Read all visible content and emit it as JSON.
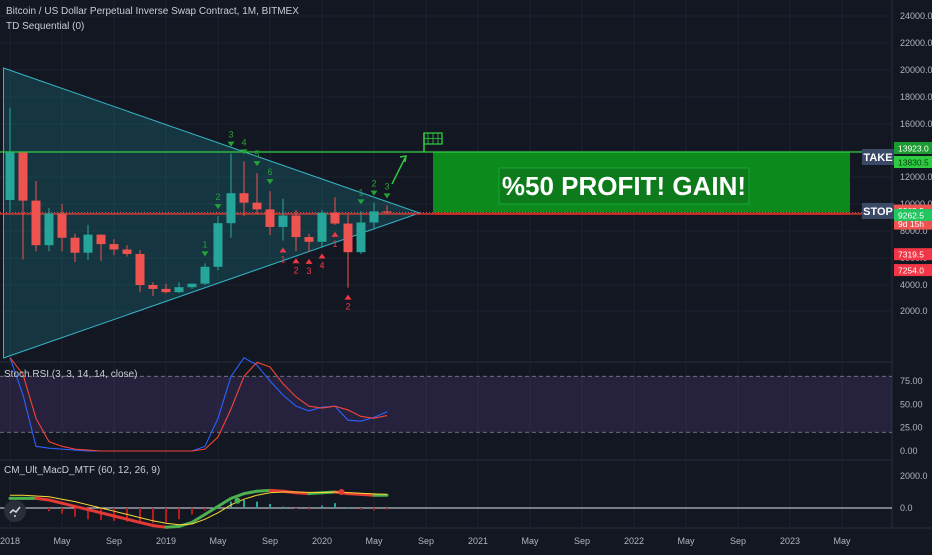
{
  "header": {
    "title": "Bitcoin / US Dollar Perpetual Inverse Swap Contract, 1M, BITMEX",
    "indicator": "TD Sequential (0)"
  },
  "panes": {
    "stoch_label": "Stoch RSI (3, 3, 14, 14, close)",
    "macd_label": "CM_Ult_MacD_MTF (60, 12, 26, 9)"
  },
  "annotations": {
    "banner": "%50 PROFIT! GAIN!",
    "take_label": "TAKE",
    "stop_label": "STOP"
  },
  "colors": {
    "background": "#131722",
    "up": "#26a69a",
    "down": "#ef5350",
    "profit": "#0c8a1b",
    "stop": "#8b0a0a",
    "take_line": "#2ecc40",
    "stop_line": "#e53935"
  },
  "chart_data": [
    {
      "type": "candlestick",
      "scale": "log",
      "y_ticks": [
        2000,
        4000,
        6000,
        8000,
        10000,
        12000,
        14000,
        16000,
        18000,
        20000,
        22000,
        24000
      ],
      "y_tick_labels": [
        "2000.0",
        "4000.0",
        "6000.0",
        "8000.0",
        "10000.0",
        "12000.0",
        "14000.0",
        "16000.0",
        "18000.0",
        "20000.0",
        "22000.0",
        "24000.0"
      ],
      "x_labels": [
        "2018",
        "May",
        "Sep",
        "2019",
        "May",
        "Sep",
        "2020",
        "May",
        "Sep",
        "2021",
        "May",
        "Sep",
        "2022",
        "May",
        "Sep",
        "2023",
        "May"
      ],
      "x_label_months": [
        0,
        4,
        8,
        12,
        16,
        20,
        24,
        28,
        32,
        36,
        40,
        44,
        48,
        52,
        56,
        60,
        64
      ],
      "candles": [
        {
          "o": 10300,
          "h": 17200,
          "l": 9400,
          "c": 13880
        },
        {
          "o": 13880,
          "h": 13900,
          "l": 5900,
          "c": 10250
        },
        {
          "o": 10250,
          "h": 11700,
          "l": 6500,
          "c": 6950
        },
        {
          "o": 6950,
          "h": 9700,
          "l": 6500,
          "c": 9300
        },
        {
          "o": 9300,
          "h": 10000,
          "l": 6500,
          "c": 7500
        },
        {
          "o": 7500,
          "h": 7800,
          "l": 5700,
          "c": 6390
        },
        {
          "o": 6390,
          "h": 8450,
          "l": 5850,
          "c": 7730
        },
        {
          "o": 7730,
          "h": 7750,
          "l": 5800,
          "c": 7030
        },
        {
          "o": 7030,
          "h": 7400,
          "l": 6200,
          "c": 6630
        },
        {
          "o": 6630,
          "h": 6950,
          "l": 6100,
          "c": 6300
        },
        {
          "o": 6300,
          "h": 6600,
          "l": 3450,
          "c": 4000
        },
        {
          "o": 4000,
          "h": 4200,
          "l": 3150,
          "c": 3700
        },
        {
          "o": 3700,
          "h": 4100,
          "l": 3350,
          "c": 3450
        },
        {
          "o": 3450,
          "h": 4200,
          "l": 3380,
          "c": 3830
        },
        {
          "o": 3830,
          "h": 4100,
          "l": 3700,
          "c": 4100
        },
        {
          "o": 4100,
          "h": 5600,
          "l": 4000,
          "c": 5350
        },
        {
          "o": 5350,
          "h": 9100,
          "l": 5100,
          "c": 8580
        },
        {
          "o": 8580,
          "h": 13800,
          "l": 7500,
          "c": 10800
        },
        {
          "o": 10800,
          "h": 13200,
          "l": 9100,
          "c": 10100
        },
        {
          "o": 10100,
          "h": 12300,
          "l": 9300,
          "c": 9600
        },
        {
          "o": 9600,
          "h": 10950,
          "l": 7700,
          "c": 8300
        },
        {
          "o": 8300,
          "h": 10400,
          "l": 7300,
          "c": 9150
        },
        {
          "o": 9150,
          "h": 9550,
          "l": 6500,
          "c": 7550
        },
        {
          "o": 7550,
          "h": 7800,
          "l": 6450,
          "c": 7200
        },
        {
          "o": 7200,
          "h": 9550,
          "l": 6850,
          "c": 9350
        },
        {
          "o": 9350,
          "h": 10500,
          "l": 8450,
          "c": 8550
        },
        {
          "o": 8550,
          "h": 9200,
          "l": 3800,
          "c": 6430
        },
        {
          "o": 6430,
          "h": 9450,
          "l": 6300,
          "c": 8630
        },
        {
          "o": 8630,
          "h": 10100,
          "l": 8100,
          "c": 9450
        },
        {
          "o": 9450,
          "h": 9900,
          "l": 9270,
          "c": 9365
        }
      ],
      "td_sequential": [
        {
          "m": 15,
          "label": "1",
          "side": "buy"
        },
        {
          "m": 16,
          "label": "2",
          "side": "buy"
        },
        {
          "m": 17,
          "label": "3",
          "side": "buy"
        },
        {
          "m": 18,
          "label": "4",
          "side": "buy"
        },
        {
          "m": 19,
          "label": "5",
          "side": "buy"
        },
        {
          "m": 20,
          "label": "6",
          "side": "buy"
        },
        {
          "m": 21,
          "label": "1",
          "side": "sell"
        },
        {
          "m": 22,
          "label": "2",
          "side": "sell"
        },
        {
          "m": 23,
          "label": "3",
          "side": "sell"
        },
        {
          "m": 24,
          "label": "4",
          "side": "sell"
        },
        {
          "m": 25,
          "label": "1",
          "side": "sell"
        },
        {
          "m": 26,
          "label": "2",
          "side": "sell"
        },
        {
          "m": 27,
          "label": "1",
          "side": "buy"
        },
        {
          "m": 28,
          "label": "2",
          "side": "buy"
        },
        {
          "m": 29,
          "label": "3",
          "side": "buy"
        }
      ],
      "levels": {
        "take": 13923.0,
        "take_label": "13923.0",
        "price_label": "9365.5",
        "countdown": "9d 15h",
        "stop": 9262.5,
        "stop_label": "9262.5",
        "high_label": "13830.5",
        "low1_label": "7319.5",
        "low2_label": "7254.0"
      }
    },
    {
      "type": "line",
      "name": "Stoch RSI",
      "y_ticks": [
        0,
        25,
        50,
        75
      ],
      "y_tick_labels": [
        "0.00",
        "25.00",
        "50.00",
        "75.00"
      ],
      "band": [
        20,
        80
      ],
      "series": [
        {
          "name": "K",
          "color": "#2962ff",
          "x": [
            0,
            1,
            2,
            3,
            4,
            5,
            6,
            7,
            8,
            9,
            10,
            11,
            12,
            13,
            14,
            15,
            16,
            17,
            18,
            19,
            20,
            21,
            22,
            23,
            24,
            25,
            26,
            27,
            28,
            29
          ],
          "values": [
            100,
            60,
            5,
            3,
            2,
            1,
            0,
            0,
            0,
            0,
            0,
            0,
            0,
            0,
            0,
            5,
            35,
            80,
            100,
            92,
            75,
            60,
            48,
            43,
            47,
            48,
            33,
            32,
            36,
            42
          ]
        },
        {
          "name": "D",
          "color": "#f44336",
          "x": [
            0,
            1,
            2,
            3,
            4,
            5,
            6,
            7,
            8,
            9,
            10,
            11,
            12,
            13,
            14,
            15,
            16,
            17,
            18,
            19,
            20,
            21,
            22,
            23,
            24,
            25,
            26,
            27,
            28,
            29
          ],
          "values": [
            100,
            82,
            35,
            10,
            5,
            2,
            1,
            0,
            0,
            0,
            0,
            0,
            0,
            0,
            0,
            2,
            15,
            45,
            80,
            95,
            90,
            72,
            58,
            48,
            46,
            48,
            44,
            37,
            35,
            38
          ]
        }
      ]
    },
    {
      "type": "bar",
      "name": "MacD",
      "y_ticks": [
        0,
        2000
      ],
      "y_tick_labels": [
        "0.0",
        "2000.0"
      ],
      "histogram": [
        0,
        0,
        0,
        -200,
        -350,
        -550,
        -700,
        -750,
        -800,
        -850,
        -900,
        -950,
        -900,
        -700,
        -400,
        -150,
        150,
        400,
        500,
        400,
        250,
        80,
        -50,
        -100,
        150,
        300,
        50,
        -100,
        -150,
        -100
      ],
      "macd": [
        600,
        600,
        600,
        500,
        300,
        100,
        -100,
        -300,
        -500,
        -700,
        -900,
        -1100,
        -1200,
        -1150,
        -900,
        -400,
        100,
        600,
        900,
        1050,
        1100,
        1050,
        950,
        900,
        950,
        1000,
        900,
        850,
        800,
        800
      ],
      "signal": [
        800,
        800,
        750,
        700,
        550,
        400,
        200,
        0,
        -200,
        -400,
        -600,
        -800,
        -950,
        -1050,
        -1000,
        -700,
        -300,
        200,
        550,
        800,
        950,
        1000,
        1000,
        980,
        970,
        1000,
        960,
        920,
        880,
        850
      ]
    }
  ]
}
